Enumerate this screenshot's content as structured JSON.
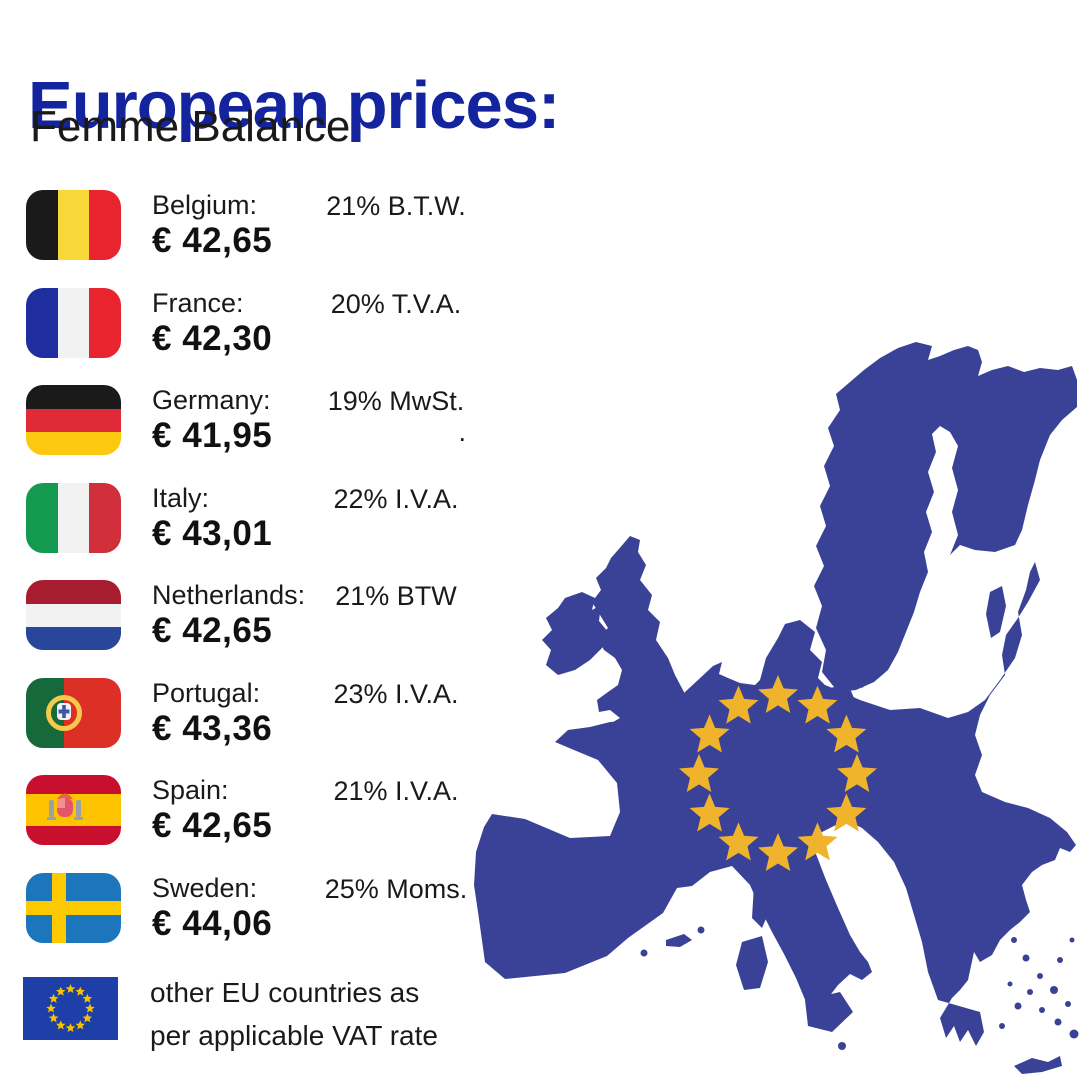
{
  "header": {
    "title": "European prices:",
    "subtitle": "Femme Balance"
  },
  "price_list": {
    "rows": [
      {
        "country": "Belgium:",
        "price": "€ 42,65",
        "vat": "21% B.T.W.",
        "flag": "be"
      },
      {
        "country": "France:",
        "price": "€ 42,30",
        "vat": "20% T.V.A.",
        "flag": "fr"
      },
      {
        "country": "Germany:",
        "price": "€ 41,95",
        "vat": "19% MwSt.",
        "vat2": ".",
        "flag": "de"
      },
      {
        "country": "Italy:",
        "price": "€ 43,01",
        "vat": "22% I.V.A.",
        "flag": "it"
      },
      {
        "country": "Netherlands:",
        "price": "€ 42,65",
        "vat": "21% BTW",
        "flag": "nl"
      },
      {
        "country": "Portugal:",
        "price": "€ 43,36",
        "vat": "23% I.V.A.",
        "flag": "pt"
      },
      {
        "country": "Spain:",
        "price": "€ 42,65",
        "vat": "21% I.V.A.",
        "flag": "es"
      },
      {
        "country": "Sweden:",
        "price": "€ 44,06",
        "vat": "25% Moms.",
        "flag": "se"
      }
    ],
    "footer_note": {
      "line1": "other EU countries as",
      "line2": "per applicable VAT rate",
      "flag": "eu"
    }
  },
  "map": {
    "stars_count": 12
  },
  "colors": {
    "title_blue": "#13249E",
    "map_blue": "#3A4297",
    "star_gold": "#F0B32C",
    "flags": {
      "be": [
        "#1A1A1A",
        "#F8D839",
        "#E8252F"
      ],
      "fr": [
        "#1F2E9E",
        "#F2F2F2",
        "#E8252F"
      ],
      "de": [
        "#1A1A1A",
        "#E02A38",
        "#FCC810"
      ],
      "it": [
        "#149A50",
        "#F2F2F2",
        "#D22F3D"
      ],
      "nl": [
        "#A81C30",
        "#F2F2F2",
        "#28479B"
      ],
      "pt": [
        "#15693B",
        "#DC3027",
        "#F6C94A",
        "#F2F2F2",
        "#3B5AA6"
      ],
      "es": [
        "#C8102E",
        "#FFC400",
        "#97A1AB",
        "#E2556A",
        "#E4683F",
        "#F0938F"
      ],
      "se": [
        "#1B76BC",
        "#FDCA00"
      ],
      "eu": [
        "#1E3EA8",
        "#F5C400"
      ]
    }
  }
}
